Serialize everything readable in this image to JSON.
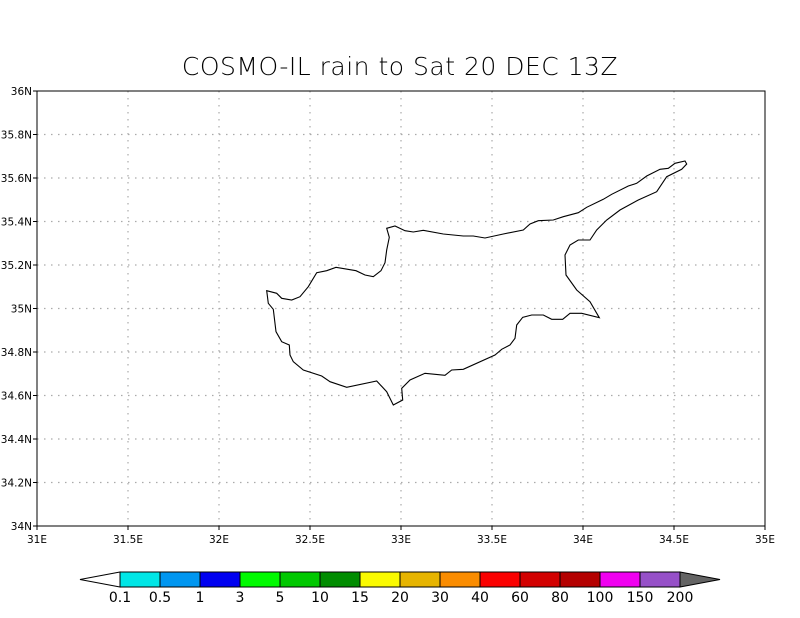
{
  "title": "COSMO-IL rain to Sat 20 DEC 13Z",
  "map": {
    "lon_range": [
      31,
      35
    ],
    "lat_range": [
      34,
      36
    ],
    "grid": true,
    "grid_style": "dotted",
    "lon_ticks": [
      "31E",
      "31.5E",
      "32E",
      "32.5E",
      "33E",
      "33.5E",
      "34E",
      "34.5E",
      "35E"
    ],
    "lat_ticks": [
      "34N",
      "34.2N",
      "34.4N",
      "34.6N",
      "34.8N",
      "35N",
      "35.2N",
      "35.4N",
      "35.6N",
      "35.8N",
      "36N"
    ],
    "coastline": "Cyprus outline",
    "precipitation_shown": false
  },
  "colorbar": {
    "labels": [
      "0.1",
      "0.5",
      "1",
      "3",
      "5",
      "10",
      "15",
      "20",
      "30",
      "40",
      "60",
      "80",
      "100",
      "150",
      "200"
    ],
    "colors": [
      "#00e6e6",
      "#0096f0",
      "#0000f0",
      "#00fa00",
      "#00c800",
      "#008c00",
      "#fafa00",
      "#e6b400",
      "#fa8c00",
      "#fa0000",
      "#d20000",
      "#b40000",
      "#f000f0",
      "#9650c8"
    ],
    "under_color": "#ffffff",
    "over_color": "#646464"
  }
}
